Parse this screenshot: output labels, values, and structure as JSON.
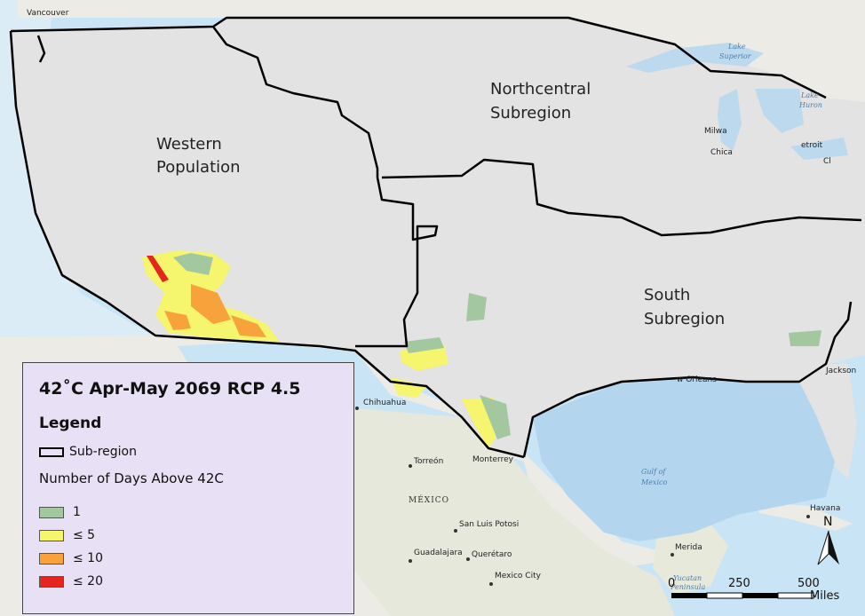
{
  "map": {
    "colors": {
      "land_base": "#ecebe6",
      "usa_gray": "#e3e3e3",
      "water": "#bcd9ee",
      "ocean_light": "#c9e4f5",
      "boundary": "#000000"
    },
    "regions": [
      {
        "id": "western",
        "label_line1": "Western",
        "label_line2": "Population"
      },
      {
        "id": "northcentral",
        "label_line1": "Northcentral",
        "label_line2": "Subregion"
      },
      {
        "id": "south",
        "label_line1": "South",
        "label_line2": "Subregion"
      }
    ],
    "cities": [
      {
        "name": "Vancouver"
      },
      {
        "name": "Milwa"
      },
      {
        "name": "Chica"
      },
      {
        "name": "etroit"
      },
      {
        "name": "Cl"
      },
      {
        "name": "Jackson"
      },
      {
        "name": "w Orleans"
      },
      {
        "name": "Chihuahua"
      },
      {
        "name": "Torreón"
      },
      {
        "name": "Monterrey"
      },
      {
        "name": "San Luis Potosi"
      },
      {
        "name": "Guadalajara"
      },
      {
        "name": "Querétaro"
      },
      {
        "name": "Mexico City"
      },
      {
        "name": "Merida"
      },
      {
        "name": "Havana"
      }
    ],
    "water_labels": [
      {
        "line1": "Lake",
        "line2": "Superior"
      },
      {
        "line1": "Lake",
        "line2": "Huron"
      },
      {
        "line1": "Gulf of",
        "line2": "Mexico"
      }
    ],
    "country_label": "MÉXICO",
    "peninsula_label": {
      "line1": "Yucatan",
      "line2": "Peninsula"
    }
  },
  "legend": {
    "title": "42˚C Apr-May 2069 RCP 4.5",
    "heading": "Legend",
    "subregion_label": "Sub-region",
    "days_label": "Number of Days Above 42C",
    "classes": [
      {
        "label": "1",
        "color": "#a3c8a0"
      },
      {
        "label": "≤ 5",
        "color": "#f5f56e"
      },
      {
        "label": "≤ 10",
        "color": "#f7a23a"
      },
      {
        "label": "≤ 20",
        "color": "#e8251c"
      }
    ]
  },
  "scalebar": {
    "ticks": [
      "0",
      "250",
      "500"
    ],
    "unit": "Miles"
  },
  "north_arrow": {
    "label": "N",
    "icon": "north-arrow-icon"
  }
}
